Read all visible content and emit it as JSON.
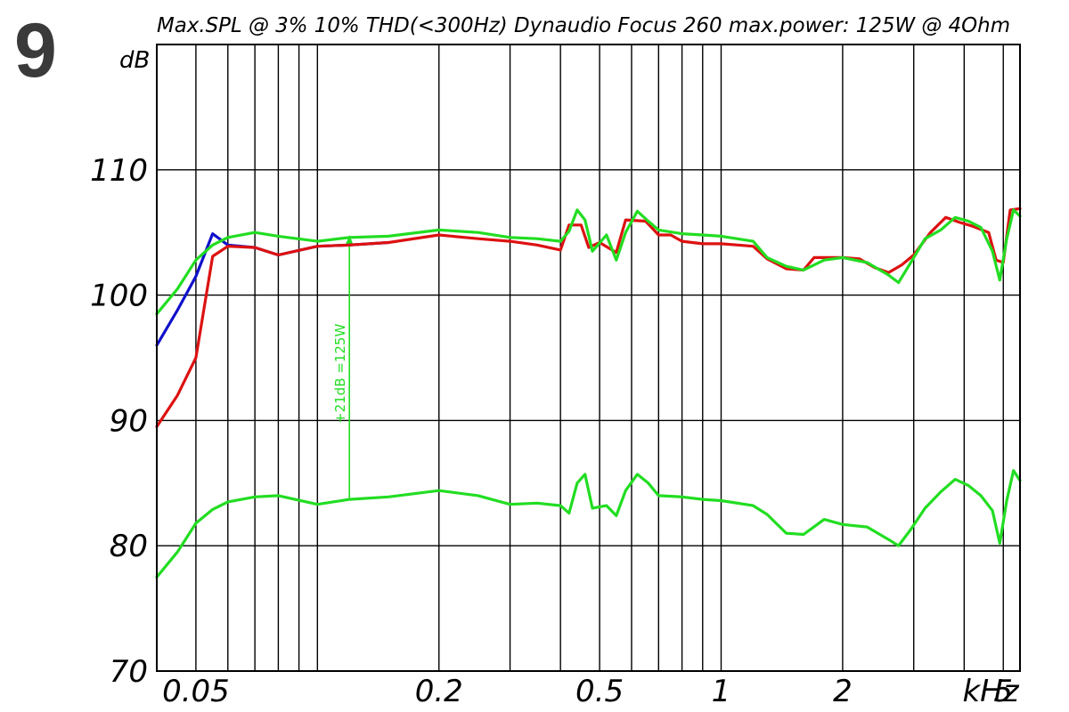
{
  "figure_number": "9",
  "chart_data": {
    "type": "line",
    "title": "Max.SPL @ 3% 10% THD(<300Hz) Dynaudio Focus 260 max.power: 125W @ 4Ohm",
    "xlabel": "kHz",
    "ylabel": "dB",
    "x_scale": "log",
    "xlim": [
      0.04,
      5.5
    ],
    "ylim": [
      70,
      120
    ],
    "grid": true,
    "y_ticks": [
      70,
      80,
      90,
      100,
      110
    ],
    "y_tick_labels": [
      "70",
      "80",
      "90",
      "100",
      "110"
    ],
    "x_ticks": [
      0.05,
      0.2,
      0.5,
      1,
      2,
      5
    ],
    "x_tick_labels": [
      "0.05",
      "0.2",
      "0.5",
      "1",
      "2",
      "5"
    ],
    "x_gridlines": [
      0.04,
      0.05,
      0.06,
      0.07,
      0.08,
      0.09,
      0.1,
      0.2,
      0.3,
      0.4,
      0.5,
      0.6,
      0.7,
      0.8,
      0.9,
      1,
      2,
      3,
      4,
      5
    ],
    "annotation": {
      "text": "+21dB =125W",
      "x": 0.12,
      "y_from": 83.8,
      "y_to": 104.8,
      "color": "#22dd22"
    },
    "series": [
      {
        "color": "#1010cc",
        "values": [
          [
            0.04,
            96.0
          ],
          [
            0.045,
            98.8
          ],
          [
            0.05,
            101.5
          ],
          [
            0.055,
            104.9
          ],
          [
            0.06,
            104.0
          ],
          [
            0.07,
            103.8
          ],
          [
            0.08,
            103.2
          ],
          [
            0.1,
            103.9
          ],
          [
            0.12,
            104.0
          ],
          [
            0.15,
            104.2
          ]
        ]
      },
      {
        "color": "#dd1111",
        "values": [
          [
            0.04,
            89.5
          ],
          [
            0.045,
            92.0
          ],
          [
            0.05,
            95.0
          ],
          [
            0.055,
            103.1
          ],
          [
            0.06,
            103.9
          ],
          [
            0.07,
            103.8
          ],
          [
            0.08,
            103.2
          ],
          [
            0.1,
            103.9
          ],
          [
            0.12,
            104.0
          ],
          [
            0.15,
            104.2
          ],
          [
            0.2,
            104.8
          ],
          [
            0.25,
            104.5
          ],
          [
            0.3,
            104.3
          ],
          [
            0.35,
            104.0
          ],
          [
            0.4,
            103.6
          ],
          [
            0.42,
            105.6
          ],
          [
            0.45,
            105.6
          ],
          [
            0.47,
            103.8
          ],
          [
            0.5,
            104.2
          ],
          [
            0.55,
            103.4
          ],
          [
            0.58,
            106.0
          ],
          [
            0.65,
            105.9
          ],
          [
            0.7,
            104.8
          ],
          [
            0.75,
            104.8
          ],
          [
            0.8,
            104.3
          ],
          [
            0.9,
            104.1
          ],
          [
            1.0,
            104.1
          ],
          [
            1.1,
            104.0
          ],
          [
            1.2,
            103.9
          ],
          [
            1.3,
            102.9
          ],
          [
            1.45,
            102.1
          ],
          [
            1.6,
            102.0
          ],
          [
            1.7,
            103.0
          ],
          [
            2.0,
            103.0
          ],
          [
            2.2,
            102.9
          ],
          [
            2.4,
            102.2
          ],
          [
            2.6,
            101.8
          ],
          [
            2.8,
            102.4
          ],
          [
            3.0,
            103.2
          ],
          [
            3.3,
            105.0
          ],
          [
            3.6,
            106.2
          ],
          [
            3.9,
            105.8
          ],
          [
            4.2,
            105.5
          ],
          [
            4.6,
            105.0
          ],
          [
            4.8,
            102.8
          ],
          [
            5.0,
            102.6
          ],
          [
            5.2,
            106.8
          ],
          [
            5.5,
            106.9
          ]
        ]
      },
      {
        "color": "#22dd22",
        "values": [
          [
            0.04,
            98.5
          ],
          [
            0.045,
            100.5
          ],
          [
            0.05,
            102.8
          ],
          [
            0.055,
            104.0
          ],
          [
            0.06,
            104.6
          ],
          [
            0.07,
            105.0
          ],
          [
            0.08,
            104.7
          ],
          [
            0.1,
            104.3
          ],
          [
            0.12,
            104.6
          ],
          [
            0.15,
            104.7
          ],
          [
            0.2,
            105.2
          ],
          [
            0.25,
            105.0
          ],
          [
            0.3,
            104.6
          ],
          [
            0.35,
            104.5
          ],
          [
            0.4,
            104.3
          ],
          [
            0.42,
            105.1
          ],
          [
            0.44,
            106.8
          ],
          [
            0.46,
            106.0
          ],
          [
            0.48,
            103.5
          ],
          [
            0.52,
            104.8
          ],
          [
            0.55,
            102.8
          ],
          [
            0.58,
            105.0
          ],
          [
            0.62,
            106.7
          ],
          [
            0.66,
            105.9
          ],
          [
            0.7,
            105.2
          ],
          [
            0.8,
            104.9
          ],
          [
            0.9,
            104.8
          ],
          [
            1.0,
            104.7
          ],
          [
            1.2,
            104.3
          ],
          [
            1.3,
            103.0
          ],
          [
            1.45,
            102.3
          ],
          [
            1.6,
            102.0
          ],
          [
            1.8,
            102.8
          ],
          [
            2.0,
            103.0
          ],
          [
            2.3,
            102.6
          ],
          [
            2.6,
            101.6
          ],
          [
            2.75,
            101.0
          ],
          [
            2.95,
            102.6
          ],
          [
            3.2,
            104.5
          ],
          [
            3.5,
            105.2
          ],
          [
            3.8,
            106.2
          ],
          [
            4.1,
            105.9
          ],
          [
            4.4,
            105.4
          ],
          [
            4.7,
            103.5
          ],
          [
            4.9,
            101.2
          ],
          [
            5.1,
            104.5
          ],
          [
            5.3,
            106.8
          ],
          [
            5.5,
            106.3
          ]
        ]
      },
      {
        "color": "#22dd22",
        "values": [
          [
            0.04,
            77.5
          ],
          [
            0.045,
            79.5
          ],
          [
            0.05,
            81.8
          ],
          [
            0.055,
            82.9
          ],
          [
            0.06,
            83.5
          ],
          [
            0.07,
            83.9
          ],
          [
            0.08,
            84.0
          ],
          [
            0.1,
            83.3
          ],
          [
            0.12,
            83.7
          ],
          [
            0.15,
            83.9
          ],
          [
            0.2,
            84.4
          ],
          [
            0.25,
            84.0
          ],
          [
            0.3,
            83.3
          ],
          [
            0.35,
            83.4
          ],
          [
            0.4,
            83.2
          ],
          [
            0.42,
            82.6
          ],
          [
            0.44,
            85.0
          ],
          [
            0.46,
            85.7
          ],
          [
            0.48,
            83.0
          ],
          [
            0.52,
            83.2
          ],
          [
            0.55,
            82.4
          ],
          [
            0.58,
            84.4
          ],
          [
            0.62,
            85.7
          ],
          [
            0.66,
            85.0
          ],
          [
            0.7,
            84.0
          ],
          [
            0.8,
            83.9
          ],
          [
            0.9,
            83.7
          ],
          [
            1.0,
            83.6
          ],
          [
            1.2,
            83.2
          ],
          [
            1.3,
            82.5
          ],
          [
            1.45,
            81.0
          ],
          [
            1.6,
            80.9
          ],
          [
            1.8,
            82.1
          ],
          [
            2.0,
            81.7
          ],
          [
            2.3,
            81.5
          ],
          [
            2.6,
            80.5
          ],
          [
            2.75,
            80.0
          ],
          [
            2.95,
            81.3
          ],
          [
            3.2,
            83.0
          ],
          [
            3.5,
            84.3
          ],
          [
            3.8,
            85.3
          ],
          [
            4.1,
            84.8
          ],
          [
            4.4,
            84.0
          ],
          [
            4.7,
            82.8
          ],
          [
            4.9,
            80.2
          ],
          [
            5.1,
            83.6
          ],
          [
            5.3,
            86.0
          ],
          [
            5.5,
            85.2
          ]
        ]
      }
    ]
  }
}
